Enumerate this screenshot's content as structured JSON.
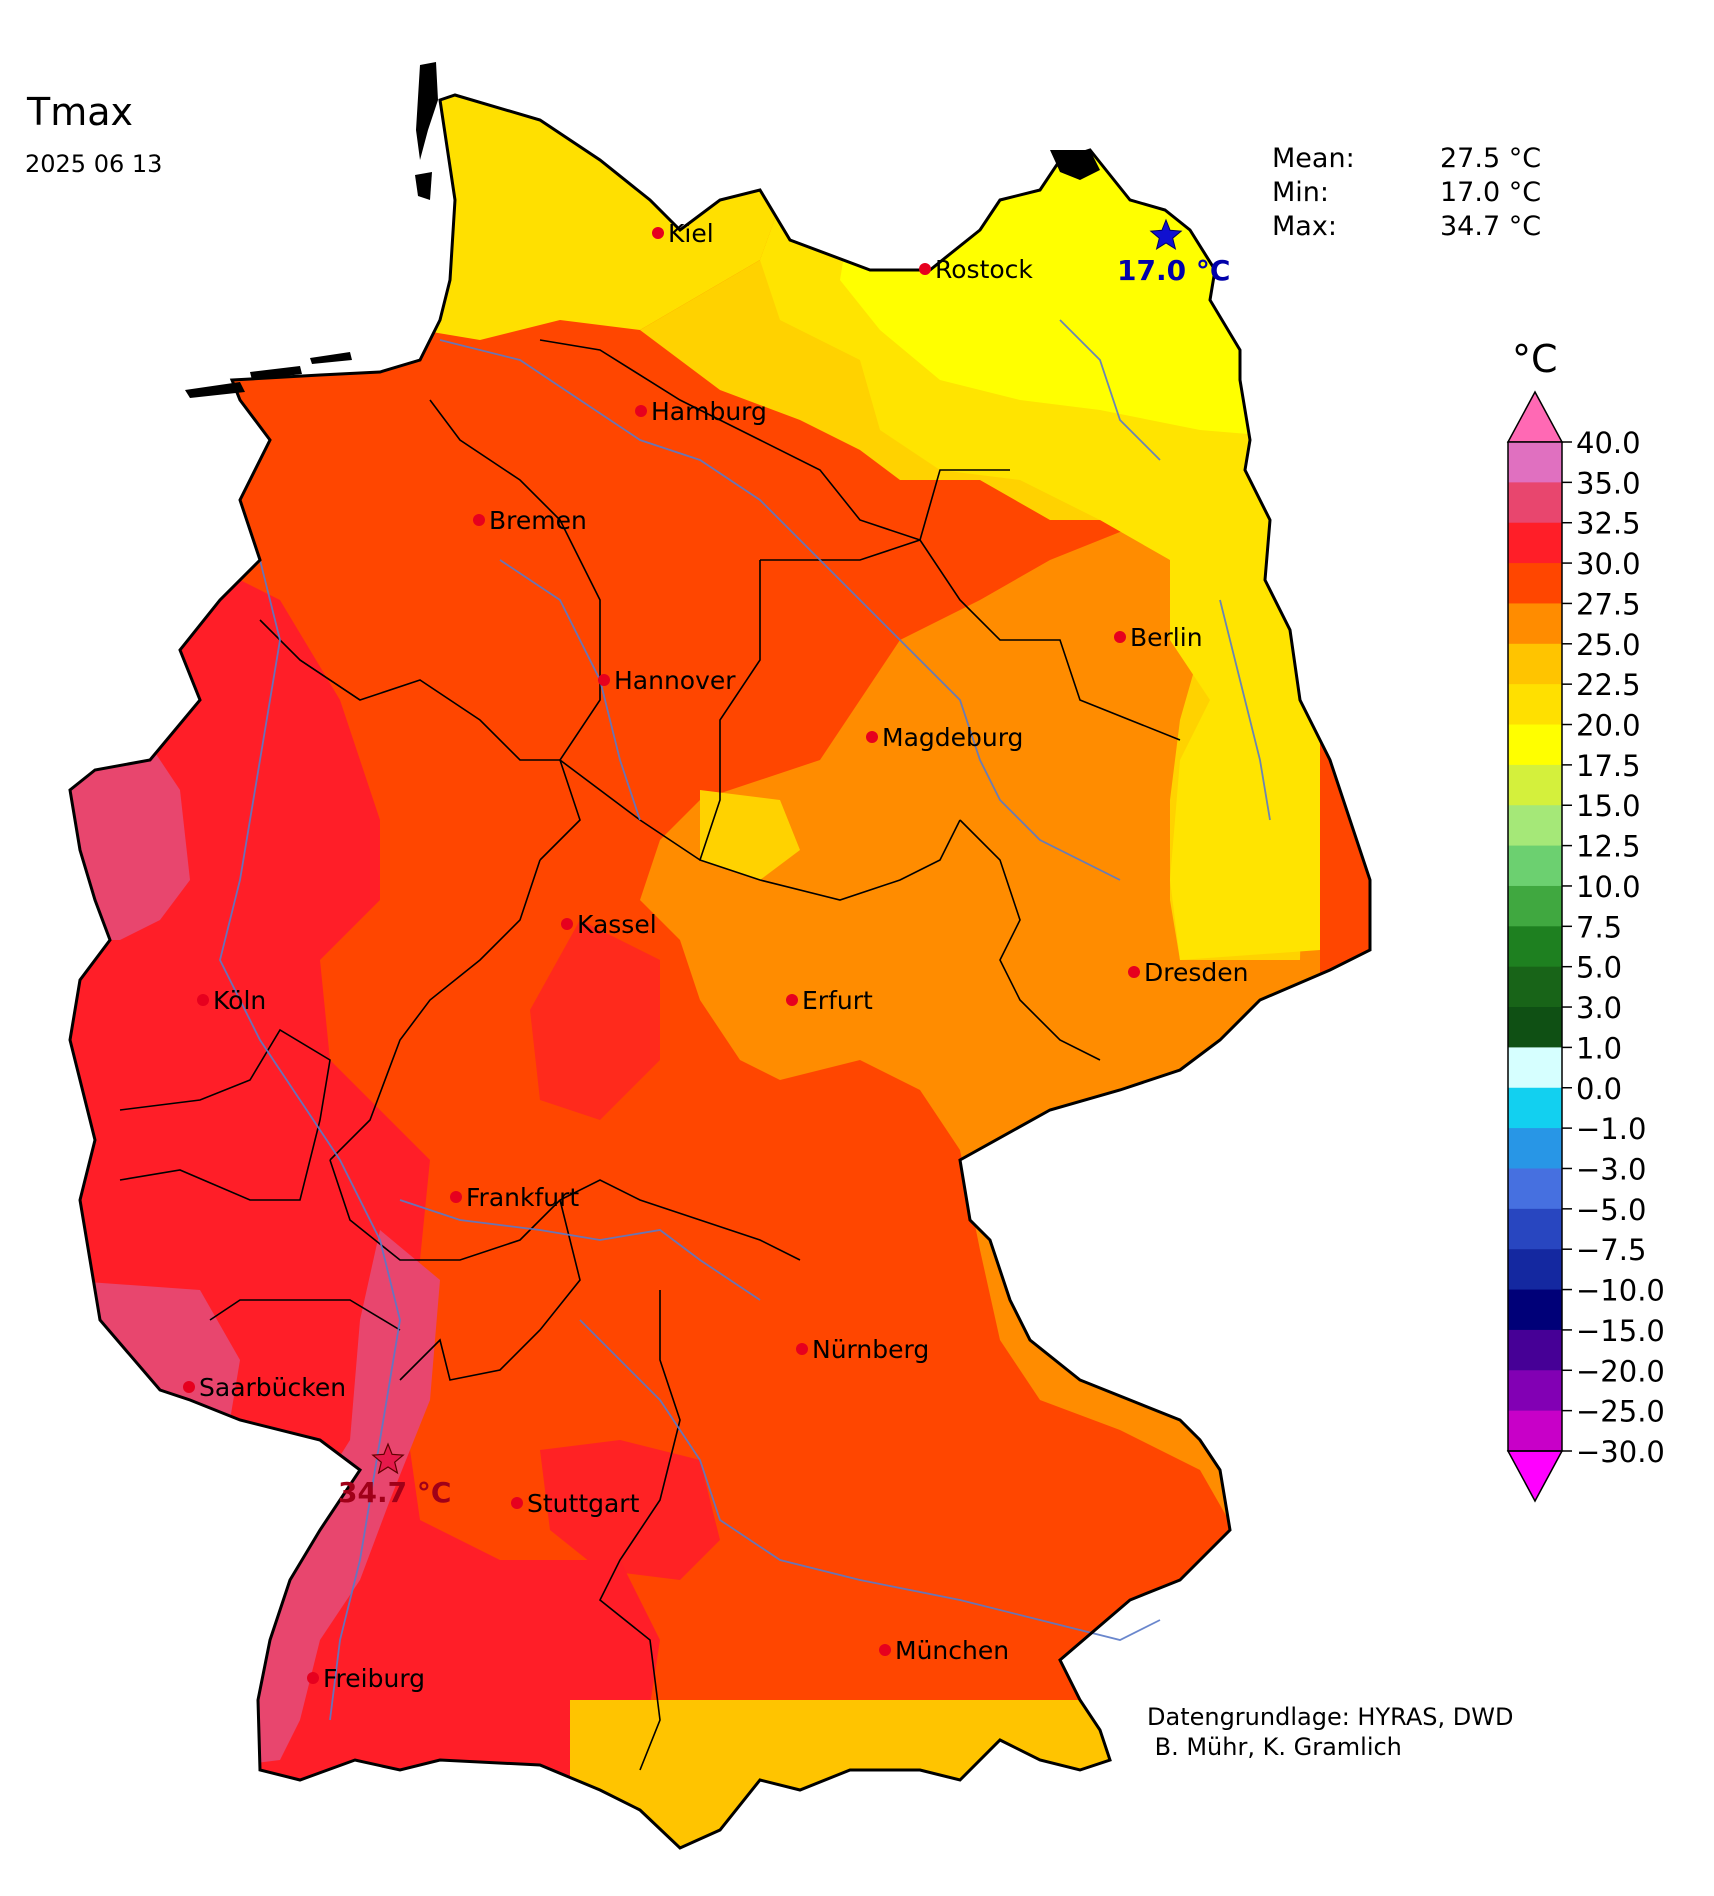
{
  "title": "Tmax",
  "date": "2025 06 13",
  "stats": [
    {
      "label": "Mean:",
      "value": "27.5 °C"
    },
    {
      "label": "Min:",
      "value": "17.0 °C"
    },
    {
      "label": "Max:",
      "value": "34.7 °C"
    }
  ],
  "extremes": {
    "min": {
      "label": "17.0 °C",
      "color": "#0000cc"
    },
    "max": {
      "label": "34.7 °C",
      "color": "#e6194b"
    }
  },
  "colorbar": {
    "unit": "°C",
    "ticks": [
      "40.0",
      "35.0",
      "32.5",
      "30.0",
      "27.5",
      "25.0",
      "22.5",
      "20.0",
      "17.5",
      "15.0",
      "12.5",
      "10.0",
      "7.5",
      "5.0",
      "3.0",
      "1.0",
      "0.0",
      "−1.0",
      "−3.0",
      "−5.0",
      "−7.5",
      "−10.0",
      "−15.0",
      "−20.0",
      "−25.0",
      "−30.0"
    ],
    "colors": [
      "#e070c0",
      "#e8466e",
      "#ff1e28",
      "#ff4600",
      "#ff8c00",
      "#ffc400",
      "#ffe000",
      "#ffff00",
      "#d4f03c",
      "#a5e878",
      "#6cd070",
      "#40a840",
      "#1e8020",
      "#186418",
      "#0f5014",
      "#d6ffff",
      "#12d0f0",
      "#2896e6",
      "#4670e0",
      "#2846c0",
      "#1428a0",
      "#000078",
      "#460096",
      "#8200b4",
      "#c800c8"
    ],
    "top_color": "#ff69b4",
    "bottom_color": "#ff00ff"
  },
  "cities": [
    {
      "name": "Kiel"
    },
    {
      "name": "Rostock"
    },
    {
      "name": "Hamburg"
    },
    {
      "name": "Bremen"
    },
    {
      "name": "Berlin"
    },
    {
      "name": "Hannover"
    },
    {
      "name": "Magdeburg"
    },
    {
      "name": "Kassel"
    },
    {
      "name": "Dresden"
    },
    {
      "name": "Köln"
    },
    {
      "name": "Erfurt"
    },
    {
      "name": "Frankfurt"
    },
    {
      "name": "Nürnberg"
    },
    {
      "name": "Saarbücken"
    },
    {
      "name": "Stuttgart"
    },
    {
      "name": "München"
    },
    {
      "name": "Freiburg"
    }
  ],
  "credits": [
    "Datengrundlage: HYRAS, DWD",
    " B. Mühr, K. Gramlich"
  ]
}
